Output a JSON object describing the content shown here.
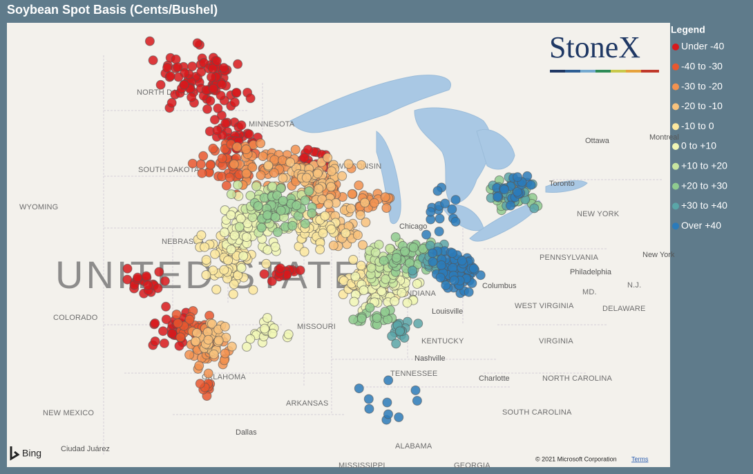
{
  "title": "Soybean Spot Basis (Cents/Bushel)",
  "legend": {
    "title": "Legend",
    "items": [
      {
        "label": "Under -40",
        "color": "#d7191c"
      },
      {
        "label": "-40 to -30",
        "color": "#e8572f"
      },
      {
        "label": "-30 to -20",
        "color": "#f29250"
      },
      {
        "label": "-20 to -10",
        "color": "#f8c27d"
      },
      {
        "label": "-10 to 0",
        "color": "#fce89f"
      },
      {
        "label": "0 to +10",
        "color": "#f1f7b6"
      },
      {
        "label": "+10 to +20",
        "color": "#c8e6a0"
      },
      {
        "label": "+20 to +30",
        "color": "#8fcb8f"
      },
      {
        "label": "+30 to +40",
        "color": "#5aa6a8"
      },
      {
        "label": "Over +40",
        "color": "#2b7bba"
      }
    ]
  },
  "logo": "StoneX",
  "map_labels": [
    "NORTH DAKOTA",
    "MINNESOTA",
    "SOUTH DAKOTA",
    "WISCONSIN",
    "WYOMING",
    "NEBRASKA",
    "COLORADO",
    "MISSOURI",
    "KENTUCKY",
    "TENNESSEE",
    "OKLAHOMA",
    "ARKANSAS",
    "NEW MEXICO",
    "ALABAMA",
    "MISSISSIPPI",
    "GEORGIA",
    "NEW YORK",
    "PENNSYLVANIA",
    "WEST VIRGINIA",
    "VIRGINIA",
    "NORTH CAROLINA",
    "SOUTH CAROLINA",
    "INDIANA",
    "MD.",
    "N.J.",
    "DELAWARE"
  ],
  "city_labels": [
    "Toronto",
    "Ottawa",
    "Columbus",
    "Louisville",
    "Nashville",
    "Charlotte",
    "Chicago",
    "Philadelphia",
    "Dallas",
    "Ciudad Juárez",
    "Montreal",
    "New York"
  ],
  "country_label": "UNITED STATES",
  "attribution": {
    "provider": "Bing",
    "copyright": "© 2021 Microsoft Corporation",
    "terms": "Terms"
  }
}
